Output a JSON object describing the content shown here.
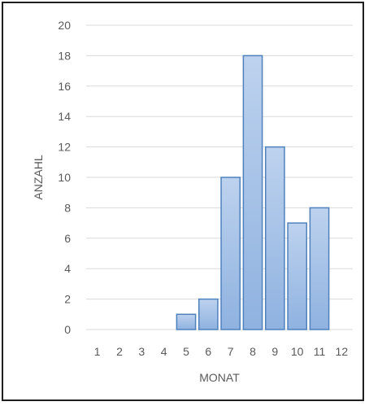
{
  "chart_data": {
    "type": "bar",
    "categories": [
      "1",
      "2",
      "3",
      "4",
      "5",
      "6",
      "7",
      "8",
      "9",
      "10",
      "11",
      "12"
    ],
    "values": [
      0,
      0,
      0,
      0,
      1,
      2,
      10,
      18,
      12,
      7,
      8,
      0
    ],
    "title": "",
    "xlabel": "MONAT",
    "ylabel": "ANZAHL",
    "ylim": [
      0,
      20
    ],
    "yticks": [
      0,
      2,
      4,
      6,
      8,
      10,
      12,
      14,
      16,
      18,
      20
    ],
    "grid": true,
    "legend": "none",
    "colors": {
      "bar_fill_top": "#bdd2ee",
      "bar_fill_bottom": "#8fb2e0",
      "bar_stroke": "#4f81bd",
      "grid": "#d9d9d9",
      "text": "#595959"
    }
  }
}
